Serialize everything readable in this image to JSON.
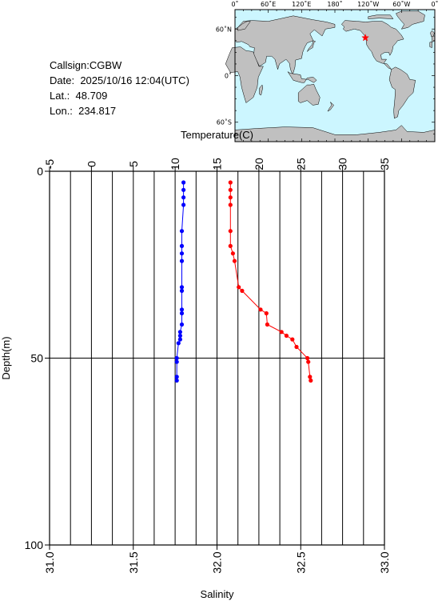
{
  "station": {
    "callsign_label": "Callsign:",
    "callsign": "CGBW",
    "date_label": "Date:",
    "date": "2025/10/16 12:04(UTC)",
    "lat_label": "Lat.:",
    "lat": "48.709",
    "lon_label": "Lon.:",
    "lon": "234.817"
  },
  "map": {
    "top_ticks": [
      "0˚",
      "60˚E",
      "120˚E",
      "180˚",
      "120˚W",
      "60˚W",
      "0˚"
    ],
    "left_ticks": [
      "60˚N",
      "0˚",
      "60˚S"
    ],
    "ocean_color": "#ccf6ff",
    "land_color": "#c0c0c0",
    "marker_color": "#ff0000",
    "marker_lon": 234.817,
    "marker_lat": 48.709
  },
  "chart_data": {
    "type": "line",
    "depth_axis": {
      "label": "Depth(m)",
      "ylim": [
        0,
        100
      ],
      "ticks": [
        "0",
        "50",
        "100"
      ],
      "inverted": true
    },
    "temperature_axis": {
      "label": "Temperature(C)",
      "xlim": [
        -5,
        35
      ],
      "ticks": [
        "-5",
        "0",
        "5",
        "10",
        "15",
        "20",
        "25",
        "30",
        "35"
      ]
    },
    "salinity_axis": {
      "label": "Salinity",
      "xlim": [
        31.0,
        33.0
      ],
      "ticks": [
        "31.0",
        "31.5",
        "32.0",
        "32.5",
        "33.0"
      ]
    },
    "grid": true,
    "series": [
      {
        "axis": "salinity",
        "color": "#0000ff",
        "points": [
          [
            31.8,
            3
          ],
          [
            31.8,
            5
          ],
          [
            31.8,
            7
          ],
          [
            31.8,
            9
          ],
          [
            31.79,
            16
          ],
          [
            31.79,
            20
          ],
          [
            31.79,
            22
          ],
          [
            31.79,
            24
          ],
          [
            31.79,
            31
          ],
          [
            31.79,
            32
          ],
          [
            31.79,
            37
          ],
          [
            31.79,
            38
          ],
          [
            31.79,
            41
          ],
          [
            31.78,
            43
          ],
          [
            31.78,
            44
          ],
          [
            31.78,
            45
          ],
          [
            31.77,
            46
          ],
          [
            31.76,
            50
          ],
          [
            31.76,
            51
          ],
          [
            31.76,
            55
          ],
          [
            31.76,
            56
          ]
        ]
      },
      {
        "axis": "temperature",
        "color": "#ff0000",
        "points": [
          [
            16.6,
            3
          ],
          [
            16.6,
            5
          ],
          [
            16.6,
            7
          ],
          [
            16.6,
            9
          ],
          [
            16.6,
            16
          ],
          [
            16.6,
            20
          ],
          [
            16.9,
            22
          ],
          [
            17.1,
            24
          ],
          [
            17.6,
            31
          ],
          [
            18.0,
            32
          ],
          [
            20.2,
            37
          ],
          [
            20.9,
            38
          ],
          [
            21.0,
            41
          ],
          [
            22.7,
            43
          ],
          [
            23.3,
            44
          ],
          [
            24.0,
            45
          ],
          [
            24.5,
            47
          ],
          [
            25.8,
            50
          ],
          [
            25.9,
            51
          ],
          [
            26.1,
            55
          ],
          [
            26.2,
            56
          ]
        ]
      }
    ]
  }
}
